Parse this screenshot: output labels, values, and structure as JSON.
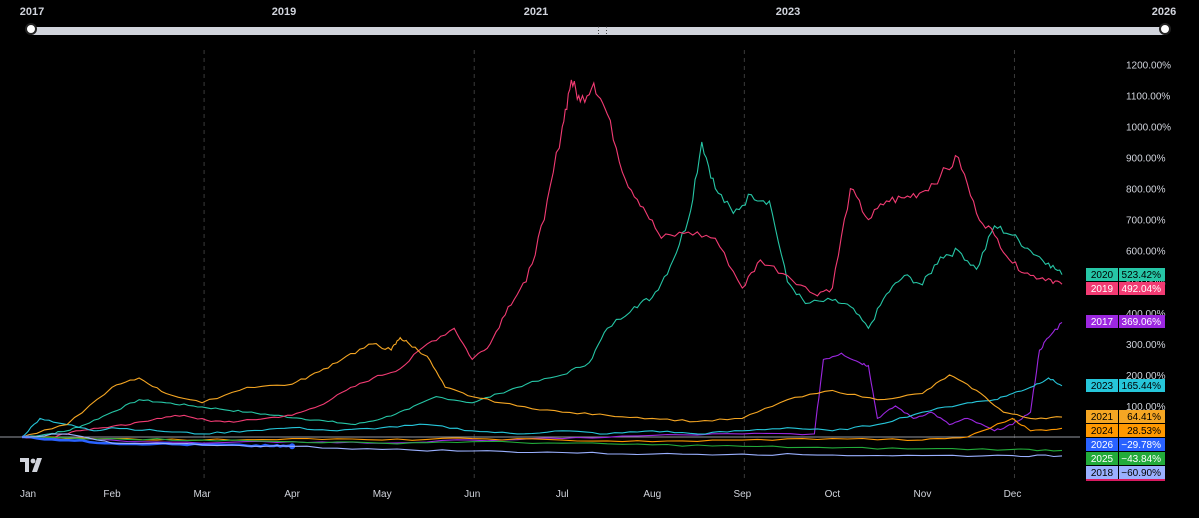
{
  "range_slider": {
    "years": [
      "2017",
      "2019",
      "2021",
      "2023",
      "2026"
    ]
  },
  "chart_data": {
    "type": "line",
    "x_axis": {
      "months": [
        "Jan",
        "Feb",
        "Mar",
        "Apr",
        "May",
        "Jun",
        "Jul",
        "Aug",
        "Sep",
        "Oct",
        "Nov",
        "Dec"
      ]
    },
    "y_axis": {
      "unit": "%",
      "ticks": [
        "1200.00%",
        "1100.00%",
        "1000.00%",
        "900.00%",
        "800.00%",
        "700.00%",
        "600.00%",
        "500.00%",
        "400.00%",
        "300.00%",
        "200.00%",
        "100.00%"
      ],
      "ylim": [
        -100,
        1250
      ]
    },
    "grid": "vertical dashed quarter lines",
    "series": [
      {
        "name": "2020",
        "last": "523.42%",
        "color": "#26c6a6",
        "points": [
          [
            0,
            0
          ],
          [
            0.3,
            10
          ],
          [
            0.5,
            20
          ],
          [
            0.7,
            40
          ],
          [
            1,
            80
          ],
          [
            1.3,
            120
          ],
          [
            1.6,
            110
          ],
          [
            1.9,
            100
          ],
          [
            2.2,
            90
          ],
          [
            2.5,
            80
          ],
          [
            2.8,
            70
          ],
          [
            3.1,
            60
          ],
          [
            3.4,
            50
          ],
          [
            3.7,
            40
          ],
          [
            4.0,
            60
          ],
          [
            4.3,
            90
          ],
          [
            4.6,
            130
          ],
          [
            5.0,
            110
          ],
          [
            5.3,
            140
          ],
          [
            5.6,
            170
          ],
          [
            6.0,
            200
          ],
          [
            6.3,
            240
          ],
          [
            6.5,
            350
          ],
          [
            6.8,
            420
          ],
          [
            7.0,
            450
          ],
          [
            7.2,
            550
          ],
          [
            7.4,
            700
          ],
          [
            7.55,
            950
          ],
          [
            7.7,
            800
          ],
          [
            7.9,
            720
          ],
          [
            8.1,
            780
          ],
          [
            8.3,
            760
          ],
          [
            8.5,
            500
          ],
          [
            8.7,
            430
          ],
          [
            9.0,
            440
          ],
          [
            9.2,
            420
          ],
          [
            9.4,
            350
          ],
          [
            9.6,
            460
          ],
          [
            9.8,
            520
          ],
          [
            10.0,
            490
          ],
          [
            10.2,
            580
          ],
          [
            10.4,
            600
          ],
          [
            10.6,
            540
          ],
          [
            10.8,
            680
          ],
          [
            11.0,
            650
          ],
          [
            11.2,
            600
          ],
          [
            11.4,
            560
          ],
          [
            11.55,
            523
          ]
        ]
      },
      {
        "name": "2019",
        "last": "492.04%",
        "color": "#f23b73",
        "points": [
          [
            0,
            0
          ],
          [
            0.3,
            -5
          ],
          [
            0.6,
            20
          ],
          [
            0.9,
            30
          ],
          [
            1.2,
            40
          ],
          [
            1.5,
            60
          ],
          [
            1.8,
            70
          ],
          [
            2.1,
            50
          ],
          [
            2.4,
            50
          ],
          [
            2.7,
            60
          ],
          [
            3.0,
            70
          ],
          [
            3.3,
            100
          ],
          [
            3.6,
            150
          ],
          [
            3.9,
            190
          ],
          [
            4.2,
            220
          ],
          [
            4.5,
            300
          ],
          [
            4.8,
            350
          ],
          [
            5.0,
            250
          ],
          [
            5.2,
            300
          ],
          [
            5.4,
            420
          ],
          [
            5.6,
            500
          ],
          [
            5.8,
            700
          ],
          [
            6.0,
            1000
          ],
          [
            6.1,
            1150
          ],
          [
            6.2,
            1080
          ],
          [
            6.35,
            1140
          ],
          [
            6.5,
            1040
          ],
          [
            6.7,
            830
          ],
          [
            6.9,
            740
          ],
          [
            7.1,
            640
          ],
          [
            7.4,
            660
          ],
          [
            7.7,
            640
          ],
          [
            8.0,
            480
          ],
          [
            8.2,
            570
          ],
          [
            8.5,
            520
          ],
          [
            8.8,
            460
          ],
          [
            9.0,
            480
          ],
          [
            9.2,
            800
          ],
          [
            9.4,
            700
          ],
          [
            9.6,
            760
          ],
          [
            9.8,
            770
          ],
          [
            10.0,
            790
          ],
          [
            10.2,
            840
          ],
          [
            10.4,
            900
          ],
          [
            10.6,
            720
          ],
          [
            10.8,
            650
          ],
          [
            11.0,
            560
          ],
          [
            11.2,
            520
          ],
          [
            11.4,
            510
          ],
          [
            11.55,
            492
          ]
        ]
      },
      {
        "name": "2017",
        "last": "369.06%",
        "color": "#9c27e0",
        "points": [
          [
            0,
            0
          ],
          [
            1,
            -10
          ],
          [
            2,
            -20
          ],
          [
            3,
            -15
          ],
          [
            4,
            -20
          ],
          [
            5,
            -10
          ],
          [
            6,
            -5
          ],
          [
            7,
            5
          ],
          [
            8,
            10
          ],
          [
            8.8,
            10
          ],
          [
            8.9,
            250
          ],
          [
            9.1,
            270
          ],
          [
            9.3,
            240
          ],
          [
            9.4,
            230
          ],
          [
            9.5,
            60
          ],
          [
            9.7,
            100
          ],
          [
            9.9,
            60
          ],
          [
            10.1,
            80
          ],
          [
            10.3,
            40
          ],
          [
            10.5,
            60
          ],
          [
            10.8,
            20
          ],
          [
            11.0,
            40
          ],
          [
            11.2,
            80
          ],
          [
            11.3,
            280
          ],
          [
            11.4,
            320
          ],
          [
            11.55,
            369
          ]
        ]
      },
      {
        "name": "2023",
        "last": "165.44%",
        "color": "#26c6da",
        "points": [
          [
            0,
            0
          ],
          [
            0.2,
            60
          ],
          [
            0.5,
            40
          ],
          [
            0.8,
            20
          ],
          [
            1.0,
            30
          ],
          [
            1.5,
            20
          ],
          [
            2.0,
            10
          ],
          [
            2.5,
            20
          ],
          [
            3.0,
            30
          ],
          [
            3.5,
            20
          ],
          [
            4.0,
            30
          ],
          [
            4.5,
            40
          ],
          [
            5.0,
            20
          ],
          [
            5.5,
            10
          ],
          [
            6.0,
            20
          ],
          [
            6.5,
            10
          ],
          [
            7.0,
            20
          ],
          [
            7.5,
            10
          ],
          [
            8.0,
            20
          ],
          [
            8.5,
            30
          ],
          [
            9.0,
            20
          ],
          [
            9.5,
            40
          ],
          [
            10.0,
            80
          ],
          [
            10.5,
            110
          ],
          [
            10.8,
            120
          ],
          [
            11.0,
            140
          ],
          [
            11.2,
            160
          ],
          [
            11.4,
            190
          ],
          [
            11.55,
            165
          ]
        ]
      },
      {
        "name": "2021",
        "last": "64.41%",
        "color": "#f5a623",
        "points": [
          [
            0,
            0
          ],
          [
            0.5,
            40
          ],
          [
            1.0,
            160
          ],
          [
            1.3,
            190
          ],
          [
            1.6,
            140
          ],
          [
            2.0,
            110
          ],
          [
            2.5,
            160
          ],
          [
            3.0,
            170
          ],
          [
            3.3,
            210
          ],
          [
            3.6,
            260
          ],
          [
            3.9,
            300
          ],
          [
            4.1,
            280
          ],
          [
            4.2,
            320
          ],
          [
            4.3,
            300
          ],
          [
            4.5,
            260
          ],
          [
            4.7,
            160
          ],
          [
            5.0,
            130
          ],
          [
            5.5,
            100
          ],
          [
            6.0,
            80
          ],
          [
            6.5,
            70
          ],
          [
            7.0,
            60
          ],
          [
            7.5,
            50
          ],
          [
            8.0,
            60
          ],
          [
            8.5,
            120
          ],
          [
            9.0,
            150
          ],
          [
            9.5,
            120
          ],
          [
            10.0,
            140
          ],
          [
            10.3,
            200
          ],
          [
            10.6,
            150
          ],
          [
            10.9,
            80
          ],
          [
            11.2,
            60
          ],
          [
            11.55,
            64
          ]
        ]
      },
      {
        "name": "2024",
        "last": "28.53%",
        "color": "#ff9800",
        "points": [
          [
            0,
            0
          ],
          [
            1,
            -5
          ],
          [
            2,
            -10
          ],
          [
            3,
            -5
          ],
          [
            4,
            -10
          ],
          [
            5,
            -5
          ],
          [
            6,
            -10
          ],
          [
            7,
            -15
          ],
          [
            8,
            -10
          ],
          [
            9,
            -5
          ],
          [
            10,
            -10
          ],
          [
            10.5,
            0
          ],
          [
            11.0,
            60
          ],
          [
            11.2,
            20
          ],
          [
            11.55,
            28
          ]
        ]
      },
      {
        "name": "2026",
        "last": "−29.78%",
        "color": "#2962ff",
        "points": [
          [
            0,
            0
          ],
          [
            0.5,
            -10
          ],
          [
            1.0,
            -20
          ],
          [
            1.5,
            -22
          ],
          [
            2.0,
            -25
          ],
          [
            2.5,
            -28
          ],
          [
            2.8,
            -29
          ],
          [
            3.0,
            -29.78
          ]
        ]
      },
      {
        "name": "2025",
        "last": "−43.84%",
        "color": "#22ab3a",
        "points": [
          [
            0,
            0
          ],
          [
            1,
            -5
          ],
          [
            2,
            -10
          ],
          [
            3,
            -15
          ],
          [
            4,
            -20
          ],
          [
            5,
            -15
          ],
          [
            6,
            -20
          ],
          [
            7,
            -25
          ],
          [
            8,
            -30
          ],
          [
            9,
            -35
          ],
          [
            10,
            -38
          ],
          [
            11,
            -40
          ],
          [
            11.55,
            -43
          ]
        ]
      },
      {
        "name": "2018",
        "last": "−60.90%",
        "color": "#9ab0ff",
        "points": [
          [
            0,
            0
          ],
          [
            0.5,
            10
          ],
          [
            1,
            -20
          ],
          [
            2,
            -25
          ],
          [
            3,
            -30
          ],
          [
            4,
            -40
          ],
          [
            5,
            -45
          ],
          [
            6,
            -50
          ],
          [
            7,
            -55
          ],
          [
            8,
            -55
          ],
          [
            9,
            -58
          ],
          [
            10,
            -60
          ],
          [
            11,
            -60
          ],
          [
            11.55,
            -61
          ]
        ]
      }
    ]
  }
}
